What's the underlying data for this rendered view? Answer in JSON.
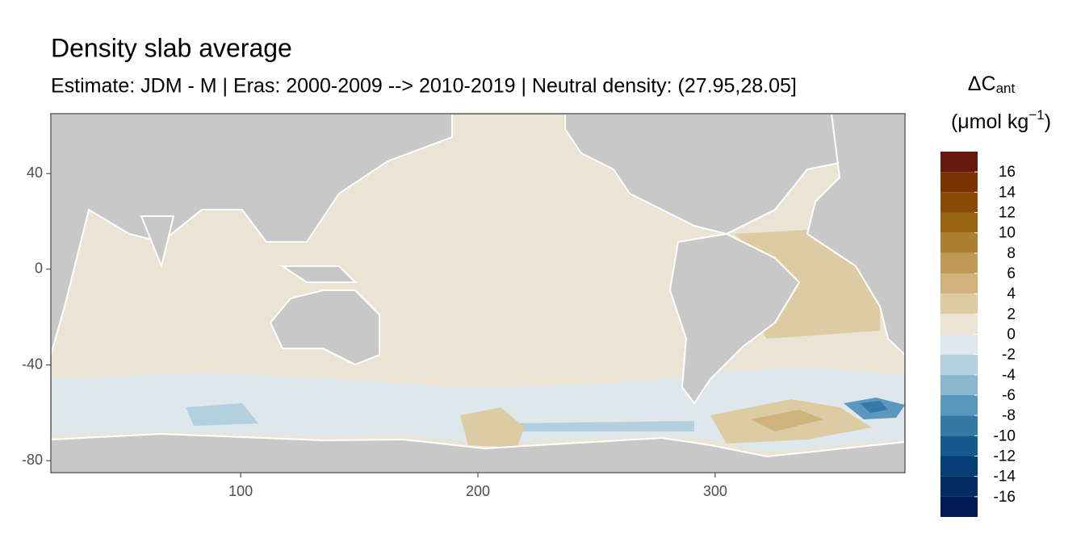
{
  "chart_data": {
    "type": "raster-map",
    "title": "Density slab average",
    "subtitle": "Estimate: JDM - M | Eras: 2000-2009 --> 2010-2019 | Neutral density: (27.95,28.05]",
    "xlim": [
      20,
      380
    ],
    "ylim": [
      -85,
      65
    ],
    "xticks": [
      100,
      200,
      300
    ],
    "yticks": [
      40,
      0,
      -40,
      -80
    ],
    "legend": {
      "title": "ΔC",
      "title_subscript": "ant",
      "unit": "(μmol kg",
      "unit_superscript": "−1",
      "unit_end": ")",
      "bins": [
        18,
        16,
        14,
        12,
        10,
        8,
        6,
        4,
        2,
        0,
        -2,
        -4,
        -6,
        -8,
        -10,
        -12,
        -14,
        -16,
        -18
      ],
      "colors": [
        "#67180a",
        "#7a3205",
        "#8a4b05",
        "#9a6512",
        "#ad7f30",
        "#bf9a55",
        "#cfb27c",
        "#ddcba4",
        "#ebe4d5",
        "#dde7ec",
        "#b4d0e0",
        "#8ab6d0",
        "#5c98bd",
        "#3679a7",
        "#17598f",
        "#053f78",
        "#022b64",
        "#001a55"
      ],
      "ticks": [
        16,
        14,
        12,
        10,
        8,
        6,
        4,
        2,
        0,
        -2,
        -4,
        -6,
        -8,
        -10,
        -12,
        -14,
        -16
      ]
    }
  }
}
